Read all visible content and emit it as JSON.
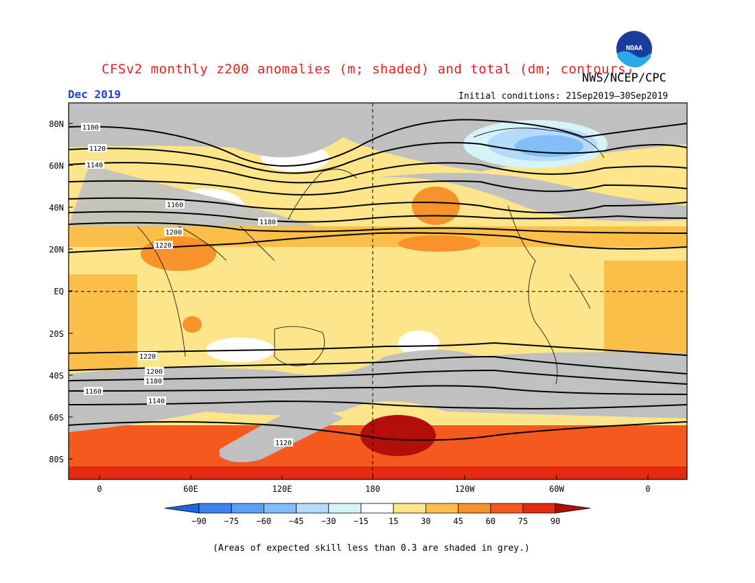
{
  "header": {
    "title": "CFSv2 monthly z200 anomalies (m; shaded) and total (dm; contours)",
    "agency": "NWS/NCEP/CPC",
    "logo_text": "NOAA",
    "month": "Dec 2019",
    "initial_conditions": "Initial conditions: 21Sep2019–30Sep2019"
  },
  "map": {
    "lat_labels": [
      "80N",
      "60N",
      "40N",
      "20N",
      "EQ",
      "20S",
      "40S",
      "60S",
      "80S"
    ],
    "lon_labels": [
      "0",
      "60E",
      "120E",
      "180",
      "120W",
      "60W",
      "0"
    ],
    "contour_labels": [
      "1100",
      "1120",
      "1140",
      "1160",
      "1180",
      "1200",
      "1220",
      "1200",
      "1180",
      "1160",
      "1140",
      "1120"
    ],
    "grey_meaning": "skill < 0.3"
  },
  "legend": {
    "ticks": [
      "−90",
      "−75",
      "−60",
      "−45",
      "−30",
      "−15",
      "15",
      "30",
      "45",
      "60",
      "75",
      "90"
    ],
    "colors": [
      "#1e64e0",
      "#3c82f0",
      "#5a9ef5",
      "#82bef8",
      "#b4dcfa",
      "#d6f4f8",
      "#ffffff",
      "#fde58a",
      "#fcc04a",
      "#f8922a",
      "#f45a1e",
      "#e42a10",
      "#b40e0a"
    ]
  },
  "footnote": "(Areas of expected skill less than 0.3 are shaded in grey.)"
}
